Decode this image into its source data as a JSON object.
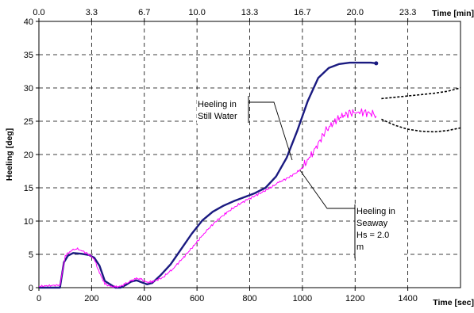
{
  "chart_data": {
    "type": "line",
    "xlabel": "Time [sec]",
    "x2label": "Time [min]",
    "ylabel": "Heeling [deg]",
    "xlim": [
      0,
      1600
    ],
    "ylim": [
      0,
      40
    ],
    "grid": true,
    "x_ticks": [
      "0",
      "200",
      "400",
      "600",
      "800",
      "1000",
      "1200",
      "1400"
    ],
    "x2_ticks": [
      "0.0",
      "3.3",
      "6.7",
      "10.0",
      "13.3",
      "16.7",
      "20.0",
      "23.3"
    ],
    "y_ticks": [
      "0",
      "5",
      "10",
      "15",
      "20",
      "25",
      "30",
      "35",
      "40"
    ],
    "annotations": [
      {
        "label": "Heeling in Still Water",
        "lines": [
          "Heeling in",
          "Still Water"
        ]
      },
      {
        "label": "Heeling in Seaway Hs = 2.0 m",
        "lines": [
          "Heeling in",
          "Seaway",
          "Hs = 2.0",
          "m"
        ]
      }
    ],
    "series": [
      {
        "color": "#1a1a80",
        "x": [
          0,
          80,
          95,
          110,
          130,
          160,
          190,
          210,
          230,
          250,
          270,
          290,
          310,
          330,
          350,
          370,
          390,
          410,
          430,
          460,
          500,
          540,
          580,
          620,
          660,
          700,
          740,
          780,
          820,
          860,
          900,
          940,
          980,
          1020,
          1060,
          1100,
          1140,
          1180,
          1220,
          1260,
          1280
        ],
        "y": [
          0,
          0,
          3.8,
          4.8,
          5.2,
          5.1,
          4.9,
          4.5,
          3.3,
          1.0,
          0.5,
          0,
          0,
          0.4,
          0.9,
          1.1,
          0.8,
          0.5,
          0.7,
          1.8,
          3.5,
          5.8,
          8.1,
          10.1,
          11.4,
          12.3,
          13.0,
          13.6,
          14.2,
          15.0,
          16.7,
          19.5,
          23.5,
          28.0,
          31.5,
          33.0,
          33.6,
          33.8,
          33.8,
          33.8,
          33.7
        ]
      },
      {
        "color": "#ff00ff",
        "x": [
          0,
          80,
          100,
          120,
          140,
          160,
          190,
          210,
          230,
          250,
          270,
          290,
          310,
          330,
          350,
          370,
          390,
          410,
          430,
          470,
          510,
          550,
          590,
          630,
          670,
          710,
          750,
          790,
          830,
          870,
          910,
          950,
          990,
          1030,
          1060,
          1090,
          1120,
          1150,
          1180,
          1210,
          1240,
          1270,
          1280
        ],
        "y": [
          0.2,
          0.4,
          4.8,
          5.5,
          5.9,
          5.6,
          5.0,
          4.3,
          2.2,
          0.6,
          0.2,
          0.1,
          0.2,
          0.6,
          1.0,
          1.4,
          1.2,
          0.8,
          0.9,
          1.5,
          2.9,
          4.6,
          6.4,
          8.3,
          9.9,
          11.2,
          12.3,
          13.2,
          14.0,
          14.8,
          15.8,
          16.6,
          17.6,
          19.6,
          21.7,
          23.6,
          24.9,
          25.8,
          26.2,
          26.4,
          26.3,
          26.1,
          25.8
        ]
      },
      {
        "color": "#000000",
        "style": "dotted",
        "x": [
          1300,
          1350,
          1400,
          1450,
          1500,
          1550,
          1600
        ],
        "y": [
          28.4,
          28.6,
          28.8,
          29.0,
          29.2,
          29.5,
          30.0
        ]
      },
      {
        "color": "#000000",
        "style": "dotted",
        "x": [
          1300,
          1350,
          1400,
          1450,
          1500,
          1550,
          1600
        ],
        "y": [
          25.3,
          24.4,
          23.8,
          23.5,
          23.4,
          23.6,
          24.0
        ]
      }
    ]
  }
}
